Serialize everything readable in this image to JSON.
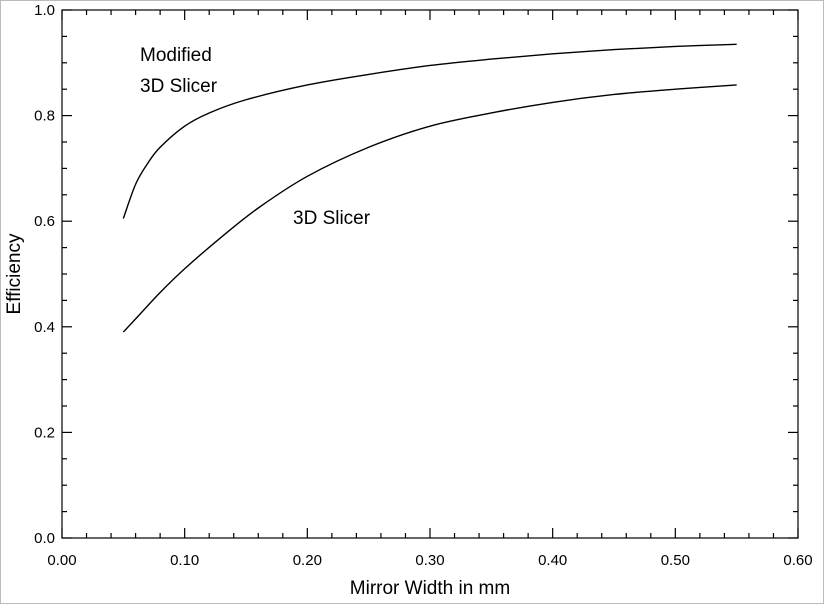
{
  "chart_data": {
    "type": "line",
    "title": "",
    "xlabel": "Mirror Width in mm",
    "ylabel": "Efficiency",
    "xlim": [
      0.0,
      0.6
    ],
    "ylim": [
      0.0,
      1.0
    ],
    "x_ticks": [
      "0.00",
      "0.10",
      "0.20",
      "0.30",
      "0.40",
      "0.50",
      "0.60"
    ],
    "y_ticks": [
      "0.0",
      "0.2",
      "0.4",
      "0.6",
      "0.8",
      "1.0"
    ],
    "grid": false,
    "legend": "none",
    "line_color": "#000000",
    "series": [
      {
        "name": "Modified 3D Slicer",
        "label_lines": [
          "Modified",
          "3D Slicer"
        ],
        "x": [
          0.05,
          0.06,
          0.07,
          0.08,
          0.1,
          0.12,
          0.15,
          0.2,
          0.25,
          0.3,
          0.35,
          0.4,
          0.45,
          0.5,
          0.55
        ],
        "y": [
          0.605,
          0.67,
          0.71,
          0.74,
          0.78,
          0.805,
          0.83,
          0.858,
          0.878,
          0.895,
          0.907,
          0.917,
          0.925,
          0.931,
          0.935
        ]
      },
      {
        "name": "3D Slicer",
        "label_lines": [
          "3D Slicer"
        ],
        "x": [
          0.05,
          0.06,
          0.08,
          0.1,
          0.13,
          0.16,
          0.2,
          0.25,
          0.3,
          0.35,
          0.4,
          0.45,
          0.5,
          0.55
        ],
        "y": [
          0.39,
          0.415,
          0.465,
          0.51,
          0.57,
          0.625,
          0.685,
          0.74,
          0.78,
          0.805,
          0.825,
          0.84,
          0.85,
          0.858
        ]
      }
    ]
  }
}
